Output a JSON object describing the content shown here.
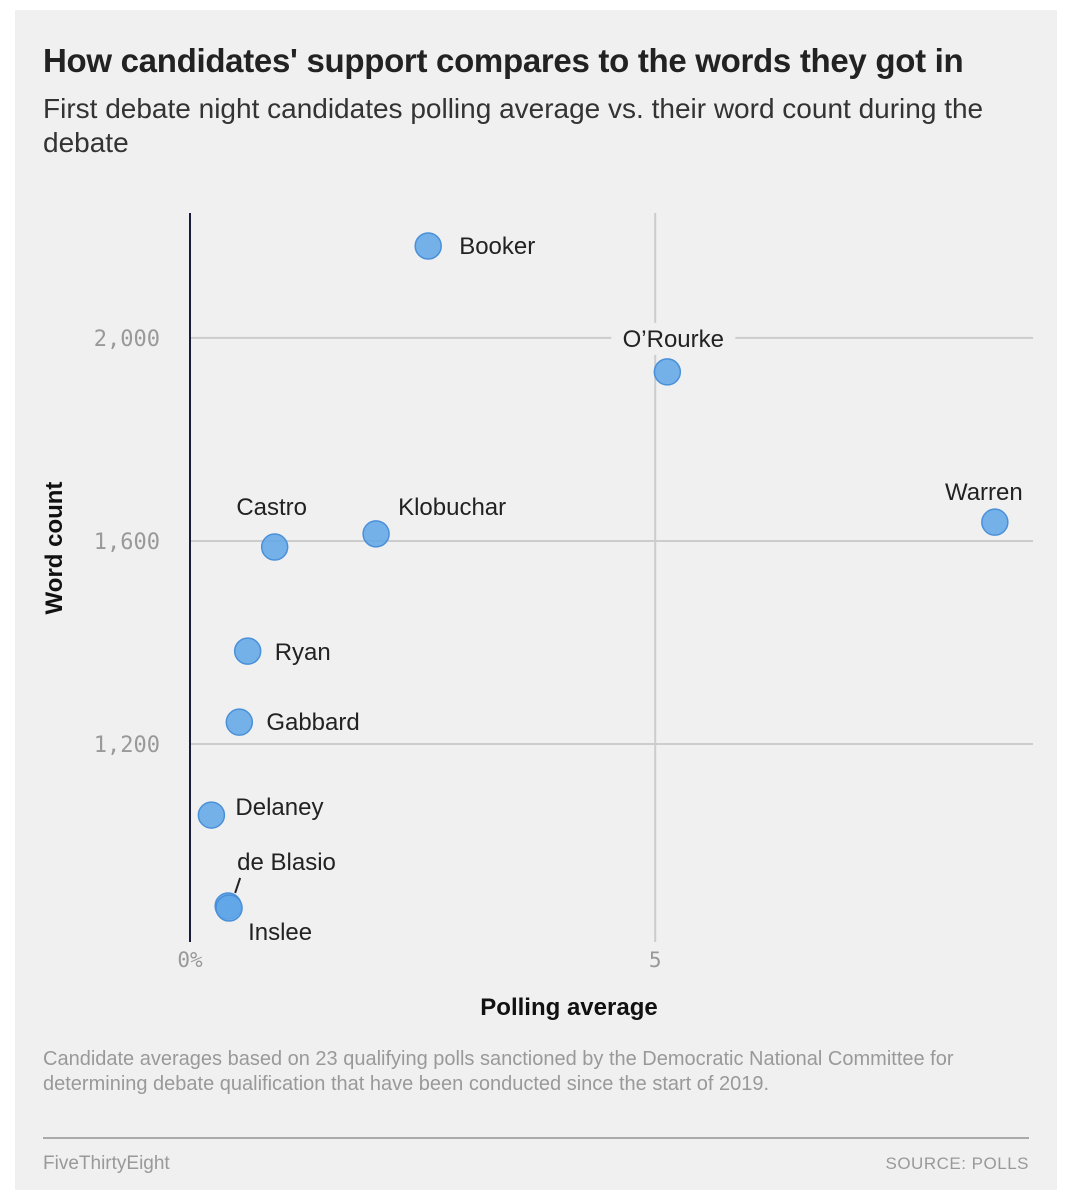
{
  "chart_data": {
    "type": "scatter",
    "title": "How candidates' support compares to the words they got in",
    "subtitle": "First debate night candidates polling average vs. their word count during the debate",
    "xlabel": "Polling average",
    "ylabel": "Word count",
    "xlim": [
      0,
      9.06
    ],
    "ylim": [
      810,
      2246
    ],
    "grid": true,
    "x_ticks": [
      {
        "value": 0,
        "label": "0%"
      },
      {
        "value": 5,
        "label": "5"
      }
    ],
    "y_ticks": [
      {
        "value": 1200,
        "label": "1,200"
      },
      {
        "value": 1600,
        "label": "1,600"
      },
      {
        "value": 2000,
        "label": "2,000"
      }
    ],
    "points": [
      {
        "name": "Booker",
        "x": 2.56,
        "y": 2181
      },
      {
        "name": "O’Rourke",
        "x": 5.13,
        "y": 1933
      },
      {
        "name": "Warren",
        "x": 8.65,
        "y": 1637
      },
      {
        "name": "Klobuchar",
        "x": 2.0,
        "y": 1614
      },
      {
        "name": "Castro",
        "x": 0.91,
        "y": 1588
      },
      {
        "name": "Ryan",
        "x": 0.62,
        "y": 1383
      },
      {
        "name": "Gabbard",
        "x": 0.53,
        "y": 1243
      },
      {
        "name": "Delaney",
        "x": 0.23,
        "y": 1060
      },
      {
        "name": "de Blasio",
        "x": 0.41,
        "y": 881
      },
      {
        "name": "Inslee",
        "x": 0.42,
        "y": 877
      }
    ],
    "point_color": "#5fa6e8"
  },
  "footer": {
    "note": "Candidate averages based on 23 qualifying polls sanctioned by the Democratic National Committee for determining debate qualification that have been conducted since the start of 2019.",
    "brand": "FiveThirtyEight",
    "source": "SOURCE: POLLS"
  }
}
